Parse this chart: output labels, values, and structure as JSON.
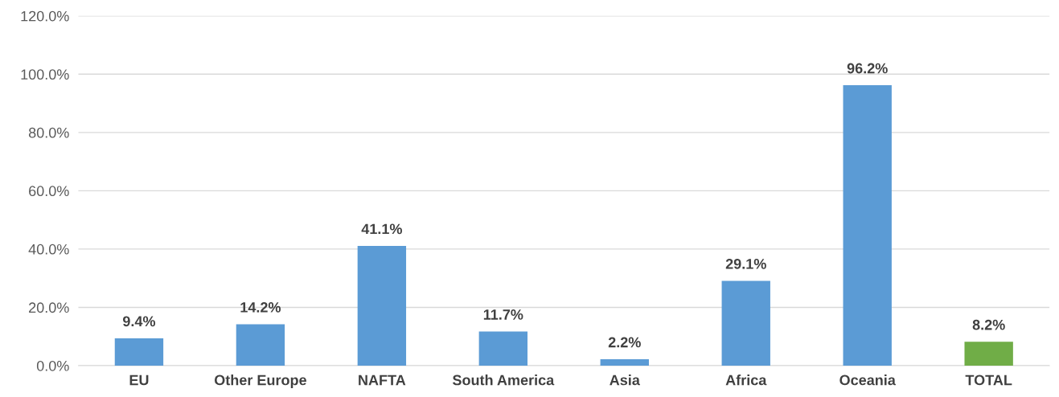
{
  "chart_data": {
    "type": "bar",
    "categories": [
      "EU",
      "Other Europe",
      "NAFTA",
      "South America",
      "Asia",
      "Africa",
      "Oceania",
      "TOTAL"
    ],
    "values": [
      9.4,
      14.2,
      41.1,
      11.7,
      2.2,
      29.1,
      96.2,
      8.2
    ],
    "colors": [
      "#5b9bd5",
      "#5b9bd5",
      "#5b9bd5",
      "#5b9bd5",
      "#5b9bd5",
      "#5b9bd5",
      "#5b9bd5",
      "#70ad47"
    ],
    "value_labels": [
      "9.4%",
      "14.2%",
      "41.1%",
      "11.7%",
      "2.2%",
      "29.1%",
      "96.2%",
      "8.2%"
    ],
    "ylim": [
      0,
      120
    ],
    "yticks": [
      {
        "value": 0,
        "label": "0.0%"
      },
      {
        "value": 20,
        "label": "20.0%"
      },
      {
        "value": 40,
        "label": "40.0%"
      },
      {
        "value": 60,
        "label": "60.0%"
      },
      {
        "value": 80,
        "label": "80.0%"
      },
      {
        "value": 100,
        "label": "100.0%"
      },
      {
        "value": 120,
        "label": "120.0%"
      }
    ],
    "grid": "y"
  }
}
